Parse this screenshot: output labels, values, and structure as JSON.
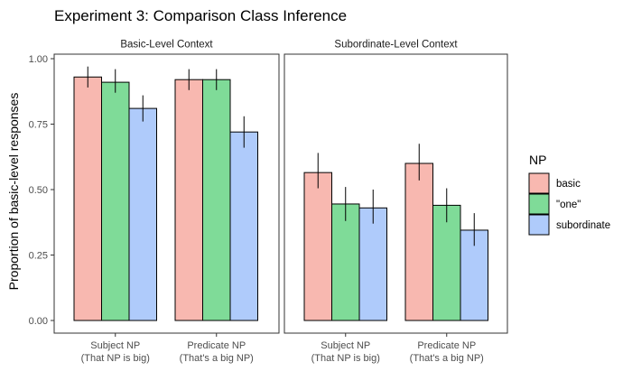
{
  "chart_data": {
    "type": "bar",
    "title": "Experiment 3: Comparison Class Inference",
    "ylabel": "Proportion of basic-level responses",
    "xlabel": "",
    "ylim": [
      0,
      1
    ],
    "yticks": [
      "0.00",
      "0.25",
      "0.50",
      "0.75",
      "1.00"
    ],
    "ytick_values": [
      0,
      0.25,
      0.5,
      0.75,
      1.0
    ],
    "legend": {
      "title": "NP",
      "placement": "right",
      "entries": [
        {
          "label": "basic",
          "color": "#F8B8B0"
        },
        {
          "label": "\"one\"",
          "color": "#7FDB98"
        },
        {
          "label": "subordinate",
          "color": "#AFCBFB"
        }
      ]
    },
    "facets": [
      {
        "label": "Basic-Level Context",
        "categories": [
          {
            "line1": "Subject NP",
            "line2": "(That NP is big)"
          },
          {
            "line1": "Predicate NP",
            "line2": "(That's a big NP)"
          }
        ],
        "series": [
          {
            "values": [
              0.93,
              0.92
            ],
            "err_low": [
              0.89,
              0.88
            ],
            "err_high": [
              0.97,
              0.96
            ]
          },
          {
            "values": [
              0.91,
              0.92
            ],
            "err_low": [
              0.87,
              0.88
            ],
            "err_high": [
              0.96,
              0.96
            ]
          },
          {
            "values": [
              0.81,
              0.72
            ],
            "err_low": [
              0.76,
              0.66
            ],
            "err_high": [
              0.86,
              0.78
            ]
          }
        ]
      },
      {
        "label": "Subordinate-Level Context",
        "categories": [
          {
            "line1": "Subject NP",
            "line2": "(That NP is big)"
          },
          {
            "line1": "Predicate NP",
            "line2": "(That's a big NP)"
          }
        ],
        "series": [
          {
            "values": [
              0.565,
              0.6
            ],
            "err_low": [
              0.505,
              0.535
            ],
            "err_high": [
              0.64,
              0.675
            ]
          },
          {
            "values": [
              0.445,
              0.44
            ],
            "err_low": [
              0.38,
              0.375
            ],
            "err_high": [
              0.51,
              0.505
            ]
          },
          {
            "values": [
              0.43,
              0.345
            ],
            "err_low": [
              0.37,
              0.285
            ],
            "err_high": [
              0.5,
              0.41
            ]
          }
        ]
      }
    ],
    "grid": false
  }
}
